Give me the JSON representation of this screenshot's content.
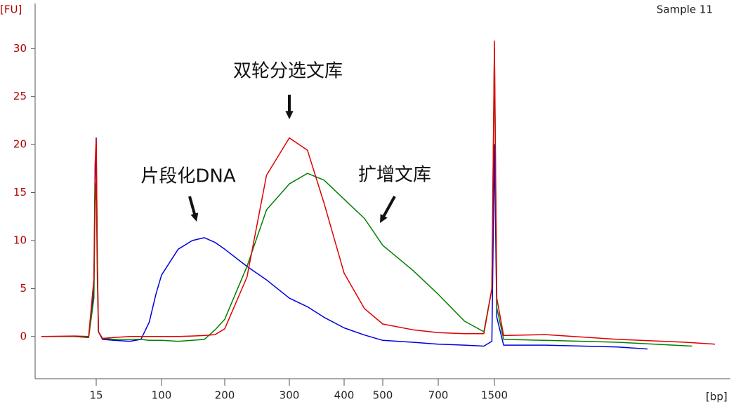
{
  "chart_data": {
    "type": "line",
    "title": "Sample 11",
    "y_label": "[FU]",
    "x_label": "[bp]",
    "xlim": [
      2.5,
      37000
    ],
    "ylim": [
      -4.4,
      34.7
    ],
    "xticks": [
      15,
      100,
      200,
      300,
      400,
      500,
      700,
      1500
    ],
    "yticks": [
      0,
      5,
      10,
      15,
      20,
      25,
      30
    ],
    "series": [
      {
        "color": "#0000e0",
        "x": [
          3,
          8,
          12,
          14,
          14.5,
          15,
          15.5,
          16,
          18,
          25,
          40,
          55,
          70,
          85,
          100,
          120,
          140,
          160,
          180,
          200,
          230,
          260,
          300,
          330,
          360,
          400,
          450,
          500,
          600,
          700,
          1000,
          1300,
          1450,
          1500,
          1550,
          1700,
          3000,
          8000,
          12000
        ],
        "values": [
          0,
          0,
          -0.1,
          5,
          16,
          20.7,
          8,
          0.5,
          -0.3,
          -0.4,
          -0.5,
          -0.3,
          1.5,
          4.4,
          6.4,
          9.1,
          10,
          10.3,
          9.8,
          9.1,
          7.3,
          5.9,
          4,
          3.1,
          2,
          0.9,
          0.15,
          -0.4,
          -0.6,
          -0.8,
          -0.9,
          -1,
          -0.5,
          20,
          2,
          -0.9,
          -0.9,
          -1.1,
          -1.3
        ]
      },
      {
        "color": "#008000",
        "x": [
          3,
          8,
          12,
          14,
          14.5,
          15,
          15.5,
          16,
          18,
          25,
          40,
          55,
          70,
          85,
          100,
          120,
          140,
          160,
          180,
          200,
          230,
          260,
          300,
          330,
          360,
          400,
          450,
          500,
          600,
          700,
          1000,
          1300,
          1450,
          1500,
          1550,
          1700,
          3000,
          8000,
          22000
        ],
        "values": [
          0,
          0,
          -0.1,
          4,
          14,
          16,
          6,
          0.5,
          -0.2,
          -0.3,
          -0.3,
          -0.3,
          -0.4,
          -0.4,
          -0.4,
          -0.5,
          -0.4,
          -0.3,
          0.7,
          1.8,
          7.3,
          13.2,
          15.9,
          17,
          16.3,
          14.3,
          12.3,
          9.5,
          6.9,
          4.4,
          1.6,
          0.5,
          5,
          30,
          3,
          -0.3,
          -0.4,
          -0.6,
          -1
        ]
      },
      {
        "color": "#e00000",
        "x": [
          3,
          8,
          12,
          14,
          14.5,
          15,
          15.5,
          16,
          18,
          25,
          40,
          55,
          70,
          85,
          100,
          120,
          140,
          160,
          180,
          200,
          230,
          260,
          300,
          330,
          360,
          400,
          450,
          500,
          600,
          700,
          1000,
          1300,
          1450,
          1500,
          1550,
          1700,
          3000,
          8000,
          20000,
          30000
        ],
        "values": [
          0,
          0.05,
          0,
          6,
          18,
          20.5,
          8,
          0.5,
          -0.2,
          -0.1,
          0,
          0,
          0,
          0,
          0,
          0,
          0.05,
          0.1,
          0.2,
          0.8,
          6.2,
          16.8,
          20.7,
          19.4,
          13.9,
          6.6,
          2.9,
          1.3,
          0.7,
          0.4,
          0.3,
          0.3,
          5,
          30.8,
          4,
          0.1,
          0.2,
          -0.3,
          -0.6,
          -0.8
        ]
      }
    ],
    "annotations": [
      "双轮分选文库",
      "片段化DNA",
      "扩增文库"
    ]
  }
}
